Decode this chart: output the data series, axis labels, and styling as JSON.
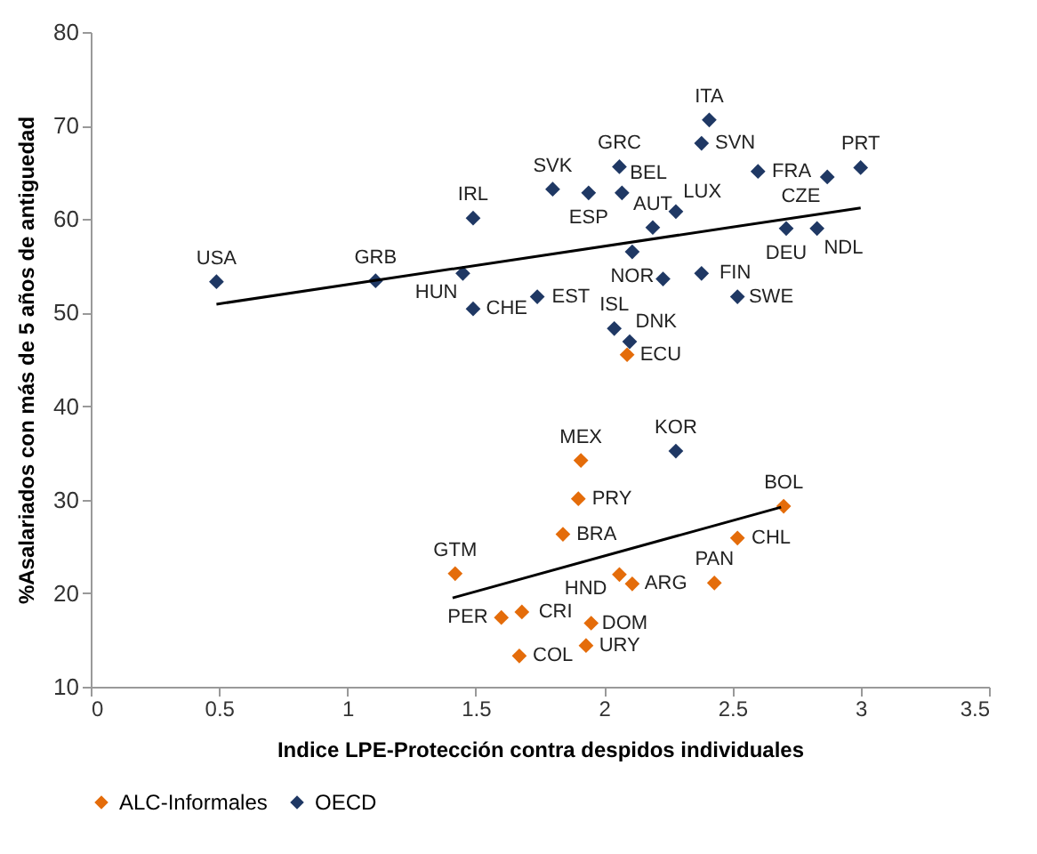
{
  "chart_data": {
    "type": "scatter",
    "xlabel": "Indice LPE-Protección contra despidos individuales",
    "ylabel": "%Asalariados con más de 5 años de antiguedad",
    "xlim": [
      0,
      3.5
    ],
    "xticks": [
      0,
      0.5,
      1,
      1.5,
      2,
      2.5,
      3,
      3.5
    ],
    "ylim": [
      10,
      80
    ],
    "yticks": [
      10,
      20,
      30,
      40,
      50,
      60,
      70,
      80
    ],
    "marker": "diamond",
    "legend": "bottom",
    "grid": false,
    "series": [
      {
        "name": "ALC-Informales",
        "color": "#e46c0a",
        "x": [
          1.91,
          1.9,
          1.84,
          1.42,
          1.68,
          1.6,
          1.67,
          1.95,
          1.93,
          2.06,
          2.11,
          2.43,
          2.52,
          2.7,
          2.09
        ],
        "values": [
          34.2,
          30.1,
          26.3,
          22.1,
          18.0,
          17.4,
          13.3,
          16.8,
          14.4,
          22.0,
          21.0,
          21.1,
          25.9,
          29.3,
          45.5
        ],
        "value_labels": [
          "MEX",
          "PRY",
          "BRA",
          "GTM",
          "CRI",
          "PER",
          "COL",
          "DOM",
          "URY",
          "HND",
          "ARG",
          "PAN",
          "CHL",
          "BOL",
          "ECU"
        ]
      },
      {
        "name": "OECD",
        "color": "#1f3864",
        "x": [
          0.49,
          1.11,
          1.49,
          1.45,
          1.49,
          1.74,
          1.8,
          1.94,
          2.07,
          2.06,
          2.38,
          2.41,
          2.6,
          2.87,
          3.0,
          2.28,
          2.19,
          2.11,
          2.23,
          2.38,
          2.52,
          2.71,
          2.83,
          2.04,
          2.1,
          2.28
        ],
        "values": [
          53.3,
          53.4,
          60.1,
          54.2,
          50.4,
          51.7,
          63.2,
          62.8,
          62.8,
          65.6,
          68.1,
          70.6,
          65.1,
          64.5,
          65.5,
          60.8,
          59.1,
          56.5,
          53.6,
          54.2,
          51.7,
          59.0,
          59.0,
          48.3,
          46.9,
          35.2
        ],
        "value_labels": [
          "USA",
          "GRB",
          "IRL",
          "HUN",
          "CHE",
          "EST",
          "SVK",
          "ESP",
          "BEL",
          "GRC",
          "SVN",
          "ITA",
          "FRA",
          "CZE",
          "PRT",
          "LUX",
          "AUT",
          "NOR",
          null,
          "FIN",
          "SWE",
          "DEU",
          "NDL",
          "ISL",
          "DNK",
          "KOR"
        ]
      },
      {
        "type": "line",
        "marker": "none",
        "color": "#000000",
        "x": [
          1.41,
          2.69
        ],
        "values": [
          19.5,
          29.2
        ]
      },
      {
        "type": "line",
        "marker": "none",
        "color": "#000000",
        "x": [
          0.49,
          3.0
        ],
        "values": [
          50.9,
          61.2
        ]
      }
    ]
  }
}
